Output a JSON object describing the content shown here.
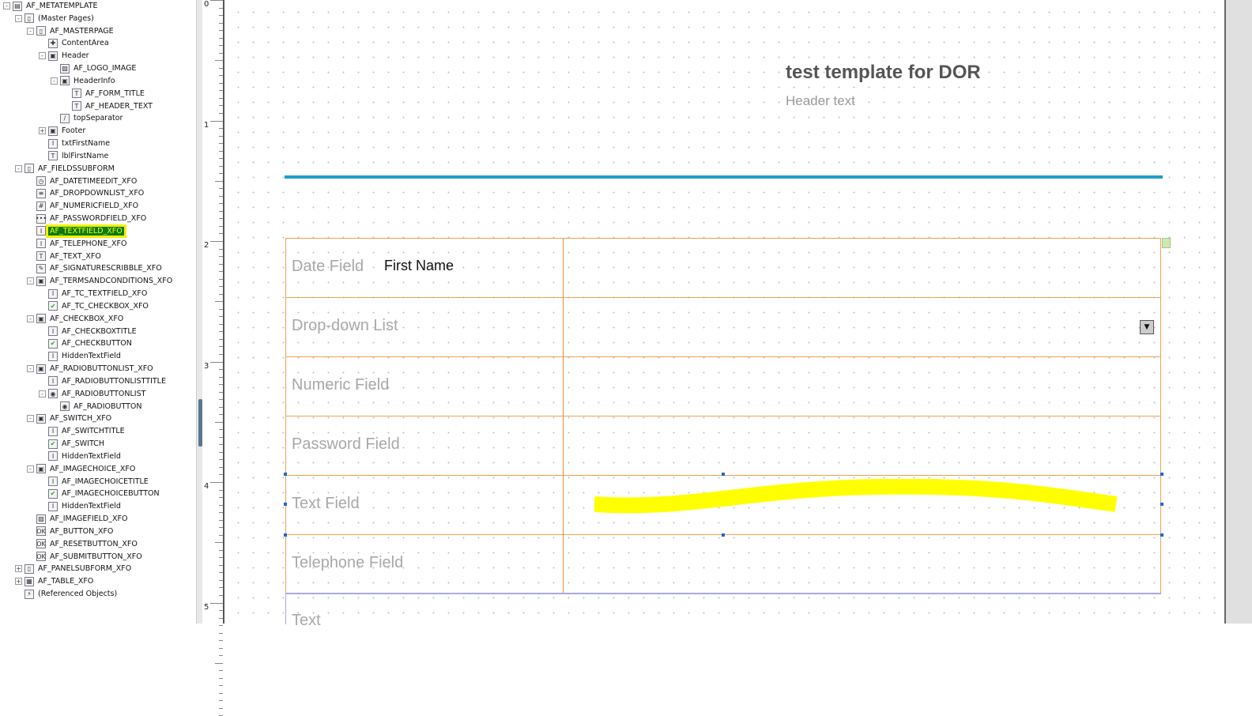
{
  "tree": [
    {
      "label": "AF_METATEMPLATE",
      "level": 0,
      "exp": "-",
      "icon": "template-icon"
    },
    {
      "label": "(Master Pages)",
      "level": 1,
      "exp": "-",
      "icon": "master-pages-icon"
    },
    {
      "label": "AF_MASTERPAGE",
      "level": 2,
      "exp": "-",
      "icon": "page-icon"
    },
    {
      "label": "ContentArea",
      "level": 3,
      "exp": "",
      "icon": "content-area-icon"
    },
    {
      "label": "Header",
      "level": 3,
      "exp": "-",
      "icon": "subform-icon"
    },
    {
      "label": "AF_LOGO_IMAGE",
      "level": 4,
      "exp": "",
      "icon": "image-icon"
    },
    {
      "label": "HeaderInfo",
      "level": 4,
      "exp": "-",
      "icon": "subform-icon"
    },
    {
      "label": "AF_FORM_TITLE",
      "level": 5,
      "exp": "",
      "icon": "text-icon"
    },
    {
      "label": "AF_HEADER_TEXT",
      "level": 5,
      "exp": "",
      "icon": "text-icon"
    },
    {
      "label": "topSeparator",
      "level": 4,
      "exp": "",
      "icon": "line-icon"
    },
    {
      "label": "Footer",
      "level": 3,
      "exp": "+",
      "icon": "subform-icon"
    },
    {
      "label": "txtFirstName",
      "level": 3,
      "exp": "",
      "icon": "textfield-icon"
    },
    {
      "label": "lblFirstName",
      "level": 3,
      "exp": "",
      "icon": "text-icon"
    },
    {
      "label": "AF_FIELDSSUBFORM",
      "level": 1,
      "exp": "-",
      "icon": "page-icon"
    },
    {
      "label": "AF_DATETIMEEDIT_XFO",
      "level": 2,
      "exp": "",
      "icon": "datetime-icon"
    },
    {
      "label": "AF_DROPDOWNLIST_XFO",
      "level": 2,
      "exp": "",
      "icon": "dropdown-icon"
    },
    {
      "label": "AF_NUMERICFIELD_XFO",
      "level": 2,
      "exp": "",
      "icon": "numeric-icon"
    },
    {
      "label": "AF_PASSWORDFIELD_XFO",
      "level": 2,
      "exp": "",
      "icon": "password-icon"
    },
    {
      "label": "AF_TEXTFIELD_XFO",
      "level": 2,
      "exp": "",
      "icon": "textfield-icon",
      "selected": true
    },
    {
      "label": "AF_TELEPHONE_XFO",
      "level": 2,
      "exp": "",
      "icon": "textfield-icon"
    },
    {
      "label": "AF_TEXT_XFO",
      "level": 2,
      "exp": "",
      "icon": "text-icon"
    },
    {
      "label": "AF_SIGNATURESCRIBBLE_XFO",
      "level": 2,
      "exp": "",
      "icon": "signature-icon"
    },
    {
      "label": "AF_TERMSANDCONDITIONS_XFO",
      "level": 2,
      "exp": "-",
      "icon": "subform-icon"
    },
    {
      "label": "AF_TC_TEXTFIELD_XFO",
      "level": 3,
      "exp": "",
      "icon": "textfield-icon"
    },
    {
      "label": "AF_TC_CHECKBOX_XFO",
      "level": 3,
      "exp": "",
      "icon": "checkbox-icon"
    },
    {
      "label": "AF_CHECKBOX_XFO",
      "level": 2,
      "exp": "-",
      "icon": "subform-icon"
    },
    {
      "label": "AF_CHECKBOXTITLE",
      "level": 3,
      "exp": "",
      "icon": "textfield-icon"
    },
    {
      "label": "AF_CHECKBUTTON",
      "level": 3,
      "exp": "",
      "icon": "checkbox-icon"
    },
    {
      "label": "HiddenTextField",
      "level": 3,
      "exp": "",
      "icon": "textfield-icon"
    },
    {
      "label": "AF_RADIOBUTTONLIST_XFO",
      "level": 2,
      "exp": "-",
      "icon": "subform-icon"
    },
    {
      "label": "AF_RADIOBUTTONLISTTITLE",
      "level": 3,
      "exp": "",
      "icon": "textfield-icon"
    },
    {
      "label": "AF_RADIOBUTTONLIST",
      "level": 3,
      "exp": "-",
      "icon": "radio-group-icon"
    },
    {
      "label": "AF_RADIOBUTTON",
      "level": 4,
      "exp": "",
      "icon": "radio-icon"
    },
    {
      "label": "AF_SWITCH_XFO",
      "level": 2,
      "exp": "-",
      "icon": "subform-icon"
    },
    {
      "label": "AF_SWITCHTITLE",
      "level": 3,
      "exp": "",
      "icon": "textfield-icon"
    },
    {
      "label": "AF_SWITCH",
      "level": 3,
      "exp": "",
      "icon": "checkbox-icon"
    },
    {
      "label": "HiddenTextField",
      "level": 3,
      "exp": "",
      "icon": "textfield-icon"
    },
    {
      "label": "AF_IMAGECHOICE_XFO",
      "level": 2,
      "exp": "-",
      "icon": "subform-icon"
    },
    {
      "label": "AF_IMAGECHOICETITLE",
      "level": 3,
      "exp": "",
      "icon": "textfield-icon"
    },
    {
      "label": "AF_IMAGECHOICEBUTTON",
      "level": 3,
      "exp": "",
      "icon": "checkbox-icon"
    },
    {
      "label": "HiddenTextField",
      "level": 3,
      "exp": "",
      "icon": "textfield-icon"
    },
    {
      "label": "AF_IMAGEFIELD_XFO",
      "level": 2,
      "exp": "",
      "icon": "image-icon"
    },
    {
      "label": "AF_BUTTON_XFO",
      "level": 2,
      "exp": "",
      "icon": "button-icon"
    },
    {
      "label": "AF_RESETBUTTON_XFO",
      "level": 2,
      "exp": "",
      "icon": "button-icon"
    },
    {
      "label": "AF_SUBMITBUTTON_XFO",
      "level": 2,
      "exp": "",
      "icon": "button-icon"
    },
    {
      "label": "AF_PANELSUBFORM_XFO",
      "level": 1,
      "exp": "+",
      "icon": "page-icon"
    },
    {
      "label": "AF_TABLE_XFO",
      "level": 1,
      "exp": "+",
      "icon": "table-icon"
    },
    {
      "label": "(Referenced Objects)",
      "level": 1,
      "exp": "",
      "icon": "referenced-objects-icon"
    }
  ],
  "ruler": {
    "labels": [
      "0",
      "1",
      "2",
      "3",
      "4",
      "5"
    ]
  },
  "canvas": {
    "form_title": "test template for DOR",
    "header_text": "Header text",
    "first_name_label": "First Name",
    "fields": [
      "Date Field",
      "Drop-down List",
      "Numeric Field",
      "Password Field",
      "Text Field",
      "Telephone Field"
    ],
    "last_field_partial": "Text",
    "separator_color": "#1ea0c8",
    "highlight_color": "#ffff00"
  }
}
